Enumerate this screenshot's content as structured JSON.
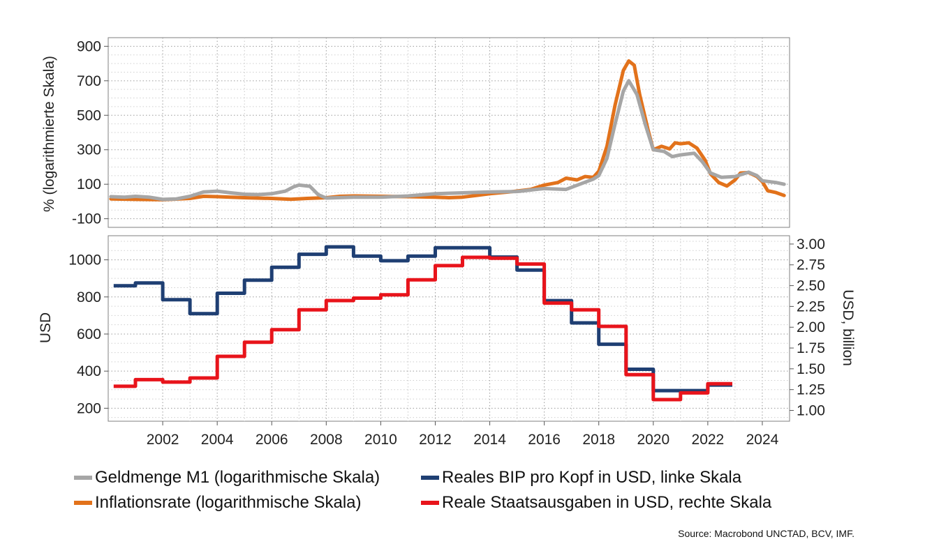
{
  "chart_data": {
    "type": "line",
    "source": "Source: Macrobond UNCTAD, BCV, IMF.",
    "x_ticks": [
      "2002",
      "2004",
      "2006",
      "2008",
      "2010",
      "2012",
      "2014",
      "2016",
      "2018",
      "2020",
      "2022",
      "2024"
    ],
    "xlim": [
      2000.0,
      2025.0
    ],
    "top_panel": {
      "ylabel": "% (logarithmierte Skala)",
      "ylim": [
        -150,
        950
      ],
      "y_ticks": [
        -100,
        100,
        300,
        500,
        700,
        900
      ],
      "series": [
        {
          "name": "Inflationsrate (logarithmische Skala)",
          "color": "#e2721b",
          "points": [
            [
              2000.1,
              15
            ],
            [
              2001,
              12
            ],
            [
              2002,
              10
            ],
            [
              2003,
              18
            ],
            [
              2003.5,
              30
            ],
            [
              2004,
              28
            ],
            [
              2005,
              22
            ],
            [
              2006,
              18
            ],
            [
              2006.7,
              13
            ],
            [
              2007.3,
              18
            ],
            [
              2008,
              22
            ],
            [
              2008.5,
              30
            ],
            [
              2009,
              32
            ],
            [
              2010,
              30
            ],
            [
              2011,
              28
            ],
            [
              2012,
              25
            ],
            [
              2012.5,
              22
            ],
            [
              2013,
              25
            ],
            [
              2013.5,
              35
            ],
            [
              2014,
              45
            ],
            [
              2014.7,
              55
            ],
            [
              2015.5,
              70
            ],
            [
              2016,
              95
            ],
            [
              2016.5,
              110
            ],
            [
              2016.8,
              135
            ],
            [
              2017.2,
              125
            ],
            [
              2017.5,
              145
            ],
            [
              2017.8,
              140
            ],
            [
              2018,
              175
            ],
            [
              2018.3,
              320
            ],
            [
              2018.6,
              560
            ],
            [
              2018.9,
              760
            ],
            [
              2019.1,
              815
            ],
            [
              2019.3,
              790
            ],
            [
              2019.5,
              620
            ],
            [
              2019.8,
              420
            ],
            [
              2020,
              300
            ],
            [
              2020.3,
              320
            ],
            [
              2020.6,
              305
            ],
            [
              2020.8,
              340
            ],
            [
              2021,
              335
            ],
            [
              2021.3,
              340
            ],
            [
              2021.6,
              310
            ],
            [
              2021.9,
              240
            ],
            [
              2022.1,
              160
            ],
            [
              2022.4,
              110
            ],
            [
              2022.7,
              90
            ],
            [
              2023,
              125
            ],
            [
              2023.2,
              165
            ],
            [
              2023.5,
              168
            ],
            [
              2023.8,
              145
            ],
            [
              2024,
              115
            ],
            [
              2024.2,
              62
            ],
            [
              2024.5,
              52
            ],
            [
              2024.8,
              35
            ]
          ]
        },
        {
          "name": "Geldmenge M1 (logarithmische Skala)",
          "color": "#a6a6a6",
          "points": [
            [
              2000.1,
              28
            ],
            [
              2000.6,
              25
            ],
            [
              2001,
              30
            ],
            [
              2001.5,
              25
            ],
            [
              2002,
              12
            ],
            [
              2002.5,
              15
            ],
            [
              2003,
              30
            ],
            [
              2003.5,
              55
            ],
            [
              2004,
              60
            ],
            [
              2004.5,
              50
            ],
            [
              2005,
              42
            ],
            [
              2005.5,
              40
            ],
            [
              2006,
              45
            ],
            [
              2006.5,
              60
            ],
            [
              2006.8,
              85
            ],
            [
              2007,
              95
            ],
            [
              2007.4,
              88
            ],
            [
              2007.7,
              40
            ],
            [
              2008,
              20
            ],
            [
              2009,
              25
            ],
            [
              2010,
              25
            ],
            [
              2011,
              32
            ],
            [
              2012,
              45
            ],
            [
              2013,
              50
            ],
            [
              2014,
              55
            ],
            [
              2015,
              58
            ],
            [
              2016,
              75
            ],
            [
              2016.8,
              70
            ],
            [
              2017.3,
              100
            ],
            [
              2017.8,
              130
            ],
            [
              2018,
              150
            ],
            [
              2018.3,
              250
            ],
            [
              2018.6,
              450
            ],
            [
              2018.9,
              640
            ],
            [
              2019.1,
              700
            ],
            [
              2019.4,
              620
            ],
            [
              2019.7,
              450
            ],
            [
              2020,
              300
            ],
            [
              2020.4,
              290
            ],
            [
              2020.7,
              260
            ],
            [
              2021,
              270
            ],
            [
              2021.5,
              280
            ],
            [
              2021.8,
              230
            ],
            [
              2022.1,
              165
            ],
            [
              2022.5,
              140
            ],
            [
              2023,
              145
            ],
            [
              2023.5,
              170
            ],
            [
              2023.8,
              150
            ],
            [
              2024,
              120
            ],
            [
              2024.5,
              110
            ],
            [
              2024.8,
              100
            ]
          ]
        }
      ]
    },
    "bottom_panel": {
      "ylabel_left": "USD",
      "ylabel_right": "USD, billion",
      "ylim_left": [
        130,
        1130
      ],
      "ylim_right": [
        0.87,
        3.1
      ],
      "y_ticks_left": [
        200,
        400,
        600,
        800,
        1000
      ],
      "y_ticks_right": [
        "1.00",
        "1.25",
        "1.50",
        "1.75",
        "2.00",
        "2.25",
        "2.50",
        "2.75",
        "3.00"
      ],
      "series": [
        {
          "name": "Reales BIP pro Kopf in USD, linke Skala",
          "color": "#1f3f73",
          "axis": "left",
          "x_start": 2000.2,
          "steps": [
            [
              2001,
              860
            ],
            [
              2002,
              875
            ],
            [
              2003,
              785
            ],
            [
              2004,
              710
            ],
            [
              2005,
              820
            ],
            [
              2006,
              890
            ],
            [
              2007,
              960
            ],
            [
              2008,
              1030
            ],
            [
              2009,
              1070
            ],
            [
              2010,
              1020
            ],
            [
              2011,
              995
            ],
            [
              2012,
              1020
            ],
            [
              2013,
              1065
            ],
            [
              2014,
              1065
            ],
            [
              2015,
              1015
            ],
            [
              2016,
              945
            ],
            [
              2017,
              780
            ],
            [
              2018,
              660
            ],
            [
              2019,
              545
            ],
            [
              2020,
              410
            ],
            [
              2021,
              295
            ],
            [
              2022,
              295
            ],
            [
              2022.9,
              325
            ]
          ]
        },
        {
          "name": "Reale Staatsausgaben in USD, rechte Skala",
          "color": "#e8141b",
          "axis": "right",
          "x_start": 2000.2,
          "steps": [
            [
              2001,
              1.29
            ],
            [
              2002,
              1.37
            ],
            [
              2003,
              1.34
            ],
            [
              2004,
              1.39
            ],
            [
              2005,
              1.65
            ],
            [
              2006,
              1.82
            ],
            [
              2007,
              1.97
            ],
            [
              2008,
              2.21
            ],
            [
              2009,
              2.32
            ],
            [
              2010,
              2.35
            ],
            [
              2011,
              2.39
            ],
            [
              2012,
              2.57
            ],
            [
              2013,
              2.74
            ],
            [
              2014,
              2.84
            ],
            [
              2015,
              2.83
            ],
            [
              2016,
              2.76
            ],
            [
              2017,
              2.29
            ],
            [
              2018,
              2.21
            ],
            [
              2019,
              2.01
            ],
            [
              2020,
              1.43
            ],
            [
              2021,
              1.13
            ],
            [
              2022,
              1.21
            ],
            [
              2022.9,
              1.32
            ]
          ]
        }
      ]
    },
    "legend": [
      {
        "label": "Geldmenge M1 (logarithmische Skala)",
        "color": "#a6a6a6"
      },
      {
        "label": "Reales BIP pro Kopf in USD, linke Skala",
        "color": "#1f3f73"
      },
      {
        "label": "Inflationsrate (logarithmische Skala)",
        "color": "#e2721b"
      },
      {
        "label": "Reale Staatsausgaben in USD, rechte Skala",
        "color": "#e8141b"
      }
    ]
  }
}
